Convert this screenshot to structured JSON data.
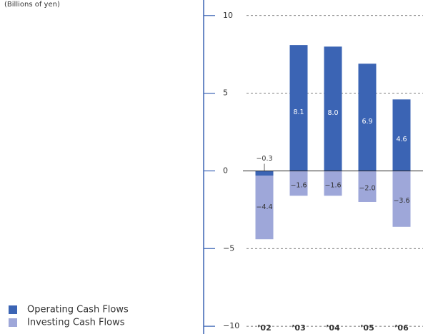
{
  "chart_data": {
    "type": "bar",
    "subtitle": "(Billions of yen)",
    "categories": [
      "’02",
      "’03",
      "’04",
      "’05",
      "’06"
    ],
    "series": [
      {
        "name": "Operating Cash Flows",
        "color": "#3b64b4",
        "values": [
          -0.3,
          8.1,
          8.0,
          6.9,
          4.6
        ],
        "value_labels": [
          "−0.3",
          "8.1",
          "8.0",
          "6.9",
          "4.6"
        ]
      },
      {
        "name": "Investing Cash Flows",
        "color": "#9ea7d9",
        "values": [
          -4.4,
          -1.6,
          -1.6,
          -2.0,
          -3.6
        ],
        "value_labels": [
          "−4.4",
          "−1.6",
          "−1.6",
          "−2.0",
          "−3.6"
        ]
      }
    ],
    "ylim": [
      -10.5,
      11
    ],
    "yticks": [
      {
        "value": -10,
        "label": "−10"
      },
      {
        "value": -5,
        "label": "−5"
      },
      0,
      5,
      10
    ],
    "grid": true,
    "legend": "bottom left"
  }
}
